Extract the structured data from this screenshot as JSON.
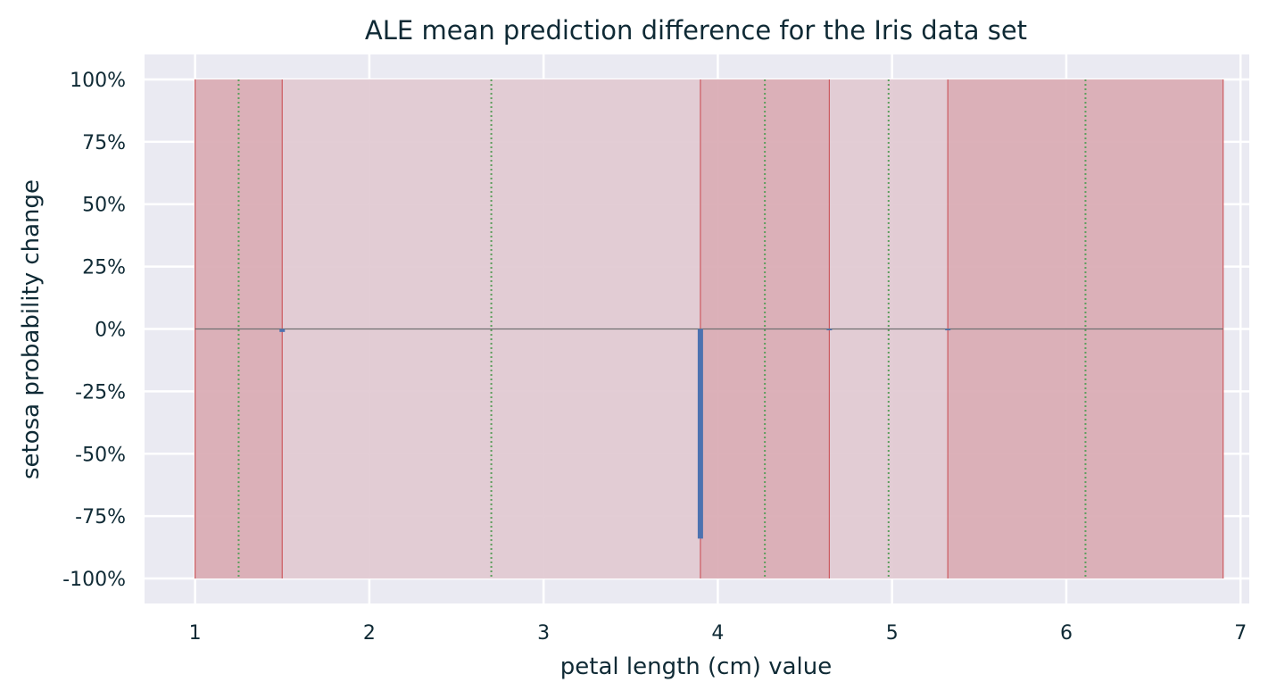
{
  "chart_data": {
    "type": "bar",
    "title": "ALE mean prediction difference for the Iris data set",
    "xlabel": "petal length (cm) value",
    "ylabel": "setosa probability change",
    "xlim": [
      0.71,
      7.05
    ],
    "ylim": [
      -1.1,
      1.1
    ],
    "x_ticks": [
      1,
      2,
      3,
      4,
      5,
      6,
      7
    ],
    "x_tick_labels": [
      "1",
      "2",
      "3",
      "4",
      "5",
      "6",
      "7"
    ],
    "y_ticks": [
      1.0,
      0.75,
      0.5,
      0.25,
      0.0,
      -0.25,
      -0.5,
      -0.75,
      -1.0
    ],
    "y_tick_labels": [
      "100%",
      "75%",
      "50%",
      "25%",
      "0%",
      "-25%",
      "-50%",
      "-75%",
      "-100%"
    ],
    "grid": true,
    "quantile_bins": [
      {
        "x0": 1.0,
        "x1": 1.5,
        "level": "dark"
      },
      {
        "x0": 1.5,
        "x1": 3.9,
        "level": "light"
      },
      {
        "x0": 3.9,
        "x1": 4.64,
        "level": "dark"
      },
      {
        "x0": 4.64,
        "x1": 5.32,
        "level": "light"
      },
      {
        "x0": 5.32,
        "x1": 6.9,
        "level": "dark"
      }
    ],
    "bin_edge_lines": [
      1.0,
      1.5,
      3.9,
      4.64,
      5.32,
      6.9
    ],
    "bin_centers": [
      1.25,
      2.7,
      4.27,
      4.98,
      6.11
    ],
    "ale_bars": [
      {
        "x": 1.5,
        "value": -0.012
      },
      {
        "x": 3.9,
        "value": -0.84
      },
      {
        "x": 4.64,
        "value": -0.004
      },
      {
        "x": 5.32,
        "value": 0.0
      }
    ]
  },
  "colors": {
    "plot_background": "#eaeaf2",
    "grid": "#ffffff",
    "dark_bin_fill": "#d9aab3",
    "light_bin_fill": "#e1c9d1",
    "bin_edge": "#cc5a60",
    "center_line": "#5d9e5d",
    "zero_line": "#707070",
    "ale_bar": "#4c72b0",
    "text": "#0f2a35"
  }
}
